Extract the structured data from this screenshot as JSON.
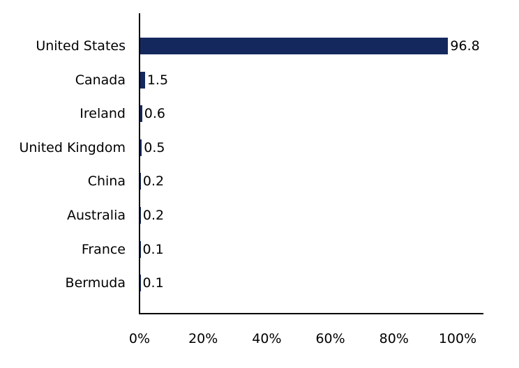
{
  "chart_data": {
    "type": "bar",
    "orientation": "horizontal",
    "title": "",
    "categories": [
      "United States",
      "Canada",
      "Ireland",
      "United Kingdom",
      "China",
      "Australia",
      "France",
      "Bermuda"
    ],
    "values": [
      96.8,
      1.5,
      0.6,
      0.5,
      0.2,
      0.2,
      0.1,
      0.1
    ],
    "value_labels": [
      "96.8",
      "1.5",
      "0.6",
      "0.5",
      "0.2",
      "0.2",
      "0.1",
      "0.1"
    ],
    "x_ticks": [
      "0%",
      "20%",
      "40%",
      "60%",
      "80%",
      "100%"
    ],
    "xlim": [
      0,
      100
    ],
    "xlabel": "",
    "ylabel": "",
    "grid": false,
    "legend": false,
    "bar_color": "#15285E",
    "axis_color": "#000000",
    "text_color": "#000000",
    "background_color": "#FFFFFF"
  }
}
